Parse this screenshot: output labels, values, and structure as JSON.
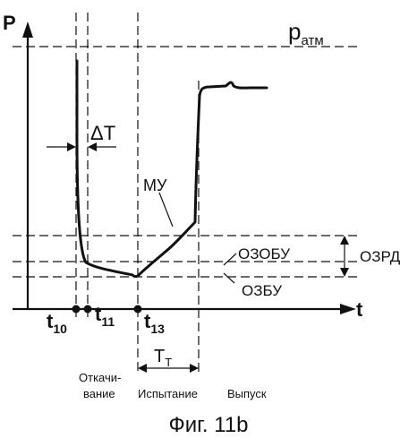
{
  "labels": {
    "p_axis": "P",
    "t_axis": "t",
    "patm_main": "p",
    "patm_sub": "атм",
    "delta_t": "ΔT",
    "mu": "МУ",
    "ozobu": "ОЗОБУ",
    "ozbu": "ОЗБУ",
    "ozrd": "ОЗРД",
    "t10_main": "t",
    "t10_sub": "10",
    "t11_main": "t",
    "t11_sub": "11",
    "t13_main": "t",
    "t13_sub": "13",
    "tt_main": "T",
    "tt_sub": "T"
  },
  "phases": {
    "pumping_line1": "Откачи-",
    "pumping_line2": "вание",
    "test": "Испытание",
    "release": "Выпуск"
  },
  "caption": "Фиг. 11b"
}
